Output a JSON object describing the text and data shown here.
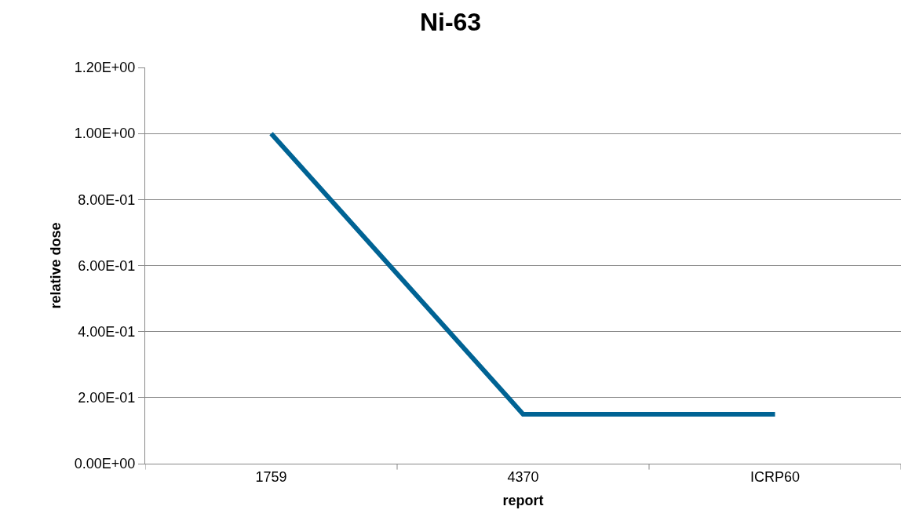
{
  "chart_data": {
    "type": "line",
    "title": "Ni-63",
    "xlabel": "report",
    "ylabel": "relative dose",
    "categories": [
      "1759",
      "4370",
      "ICRP60"
    ],
    "series": [
      {
        "color": "#006394",
        "values": [
          1.0,
          0.15,
          0.15
        ]
      }
    ],
    "ylim": [
      0,
      1.2
    ],
    "yticks": [
      {
        "value": 0,
        "label": "0.00E+00"
      },
      {
        "value": 0.2,
        "label": "2.00E-01"
      },
      {
        "value": 0.4,
        "label": "4.00E-01"
      },
      {
        "value": 0.6,
        "label": "6.00E-01"
      },
      {
        "value": 0.8,
        "label": "8.00E-01"
      },
      {
        "value": 1.0,
        "label": "1.00E+00"
      },
      {
        "value": 1.2,
        "label": "1.20E+00"
      }
    ],
    "grid": "y",
    "marker": "none",
    "line_style": "solid"
  }
}
